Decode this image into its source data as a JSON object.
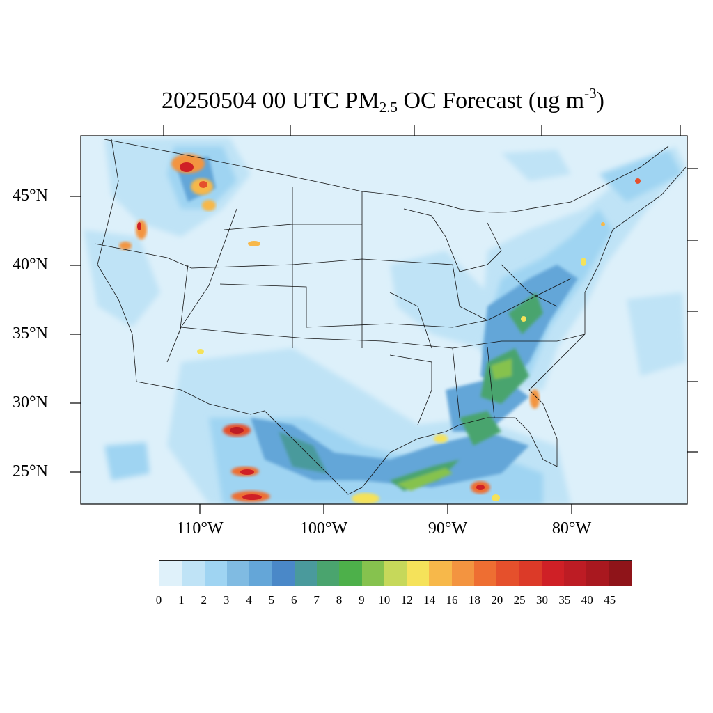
{
  "map": {
    "title_main": "20250504 00 UTC PM",
    "title_sub": "2.5",
    "title_tail": " OC Forecast (ug m",
    "title_sup": "-3",
    "title_end": ")",
    "latitude_labels": [
      "45°N",
      "40°N",
      "35°N",
      "30°N",
      "25°N"
    ],
    "longitude_labels": [
      "110°W",
      "100°W",
      "90°W",
      "80°W"
    ],
    "background_color": "#ddf0fa",
    "projection": "Lambert conformal (CONUS)",
    "region": "Contiguous United States"
  },
  "colorbar": {
    "labels": [
      "0",
      "1",
      "2",
      "3",
      "4",
      "5",
      "6",
      "7",
      "8",
      "9",
      "10",
      "12",
      "14",
      "16",
      "18",
      "20",
      "25",
      "30",
      "35",
      "40",
      "45"
    ],
    "colors": [
      "#dff1fa",
      "#bfe3f6",
      "#9fd4f2",
      "#80bbe2",
      "#64a6d8",
      "#4a88c8",
      "#4a9a9c",
      "#4aa46e",
      "#4db04a",
      "#86c24e",
      "#c6d85a",
      "#f5e25a",
      "#f7b84a",
      "#f39440",
      "#ee6e32",
      "#e5502c",
      "#dc3a28",
      "#cf2026",
      "#bd1c24",
      "#a9181f",
      "#8f1419"
    ]
  }
}
